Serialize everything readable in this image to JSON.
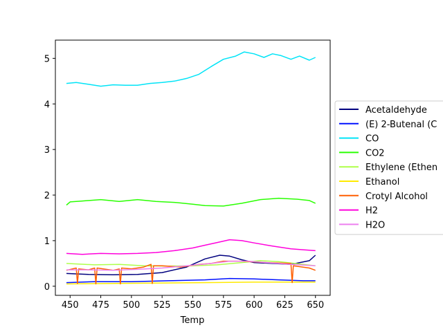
{
  "chart_data": {
    "type": "line",
    "title": "",
    "xlabel": "Temp",
    "ylabel": "",
    "xlim": [
      438,
      662
    ],
    "ylim": [
      -0.2,
      5.4
    ],
    "xticks": [
      450,
      475,
      500,
      525,
      550,
      575,
      600,
      625,
      650
    ],
    "yticks": [
      0,
      1,
      2,
      3,
      4,
      5
    ],
    "grid": false,
    "legend_position": "right, outside plot, clipped",
    "series": [
      {
        "name": "Acetaldehyde",
        "color": "#00007f",
        "x": [
          447,
          465,
          485,
          505,
          525,
          545,
          560,
          572,
          580,
          590,
          600,
          615,
          630,
          645,
          650
        ],
        "y": [
          0.28,
          0.26,
          0.25,
          0.26,
          0.3,
          0.42,
          0.6,
          0.68,
          0.66,
          0.58,
          0.52,
          0.5,
          0.48,
          0.56,
          0.68
        ]
      },
      {
        "name": "(E) 2-Butenal (C",
        "color": "#0010ff",
        "x": [
          447,
          470,
          500,
          530,
          560,
          580,
          600,
          620,
          640,
          650
        ],
        "y": [
          0.08,
          0.1,
          0.1,
          0.12,
          0.14,
          0.17,
          0.16,
          0.14,
          0.12,
          0.12
        ]
      },
      {
        "name": "CO",
        "color": "#00e4f7",
        "x": [
          447,
          455,
          465,
          475,
          485,
          495,
          505,
          515,
          525,
          535,
          545,
          555,
          565,
          575,
          585,
          592,
          600,
          608,
          615,
          622,
          630,
          637,
          645,
          650
        ],
        "y": [
          4.45,
          4.47,
          4.43,
          4.39,
          4.42,
          4.41,
          4.41,
          4.45,
          4.47,
          4.5,
          4.56,
          4.65,
          4.82,
          4.98,
          5.05,
          5.14,
          5.1,
          5.02,
          5.1,
          5.06,
          4.98,
          5.05,
          4.96,
          5.02
        ]
      },
      {
        "name": "CO2",
        "color": "#29ff00",
        "x": [
          447,
          450,
          460,
          475,
          490,
          505,
          520,
          535,
          550,
          560,
          575,
          590,
          605,
          620,
          635,
          645,
          650
        ],
        "y": [
          1.78,
          1.85,
          1.87,
          1.9,
          1.86,
          1.9,
          1.86,
          1.84,
          1.8,
          1.77,
          1.76,
          1.82,
          1.9,
          1.93,
          1.91,
          1.88,
          1.82
        ]
      },
      {
        "name": "Ethylene (Ethen",
        "color": "#aeff49",
        "x": [
          447,
          470,
          490,
          510,
          530,
          550,
          570,
          590,
          605,
          620,
          640,
          650
        ],
        "y": [
          0.5,
          0.47,
          0.48,
          0.45,
          0.44,
          0.45,
          0.47,
          0.52,
          0.56,
          0.54,
          0.48,
          0.45
        ]
      },
      {
        "name": "Ethanol",
        "color": "#ffea00",
        "x": [
          447,
          480,
          520,
          560,
          600,
          650
        ],
        "y": [
          0.05,
          0.06,
          0.07,
          0.08,
          0.09,
          0.09
        ]
      },
      {
        "name": "Crotyl Alcohol",
        "color": "#ff5e00",
        "x": [
          447,
          455,
          456,
          457,
          465,
          470,
          471,
          472,
          485,
          490,
          491,
          492,
          500,
          510,
          516,
          517,
          518,
          525,
          540,
          555,
          565,
          575,
          590,
          610,
          630,
          631,
          632,
          645,
          650
        ],
        "y": [
          0.35,
          0.4,
          0.06,
          0.38,
          0.36,
          0.4,
          0.05,
          0.4,
          0.35,
          0.38,
          0.05,
          0.4,
          0.38,
          0.42,
          0.48,
          0.06,
          0.45,
          0.45,
          0.42,
          0.48,
          0.5,
          0.55,
          0.55,
          0.52,
          0.5,
          0.08,
          0.45,
          0.4,
          0.35
        ]
      },
      {
        "name": "H2",
        "color": "#ff00dc",
        "x": [
          447,
          460,
          475,
          490,
          505,
          520,
          535,
          550,
          560,
          570,
          580,
          590,
          600,
          615,
          630,
          640,
          650
        ],
        "y": [
          0.72,
          0.7,
          0.72,
          0.71,
          0.72,
          0.74,
          0.78,
          0.84,
          0.9,
          0.96,
          1.02,
          1.0,
          0.95,
          0.88,
          0.82,
          0.8,
          0.78
        ]
      },
      {
        "name": "H2O",
        "color": "#ed7fef",
        "x": [
          447,
          465,
          485,
          505,
          525,
          545,
          565,
          580,
          595,
          610,
          630,
          650
        ],
        "y": [
          0.36,
          0.36,
          0.35,
          0.37,
          0.4,
          0.45,
          0.5,
          0.55,
          0.55,
          0.52,
          0.48,
          0.45
        ]
      }
    ]
  }
}
